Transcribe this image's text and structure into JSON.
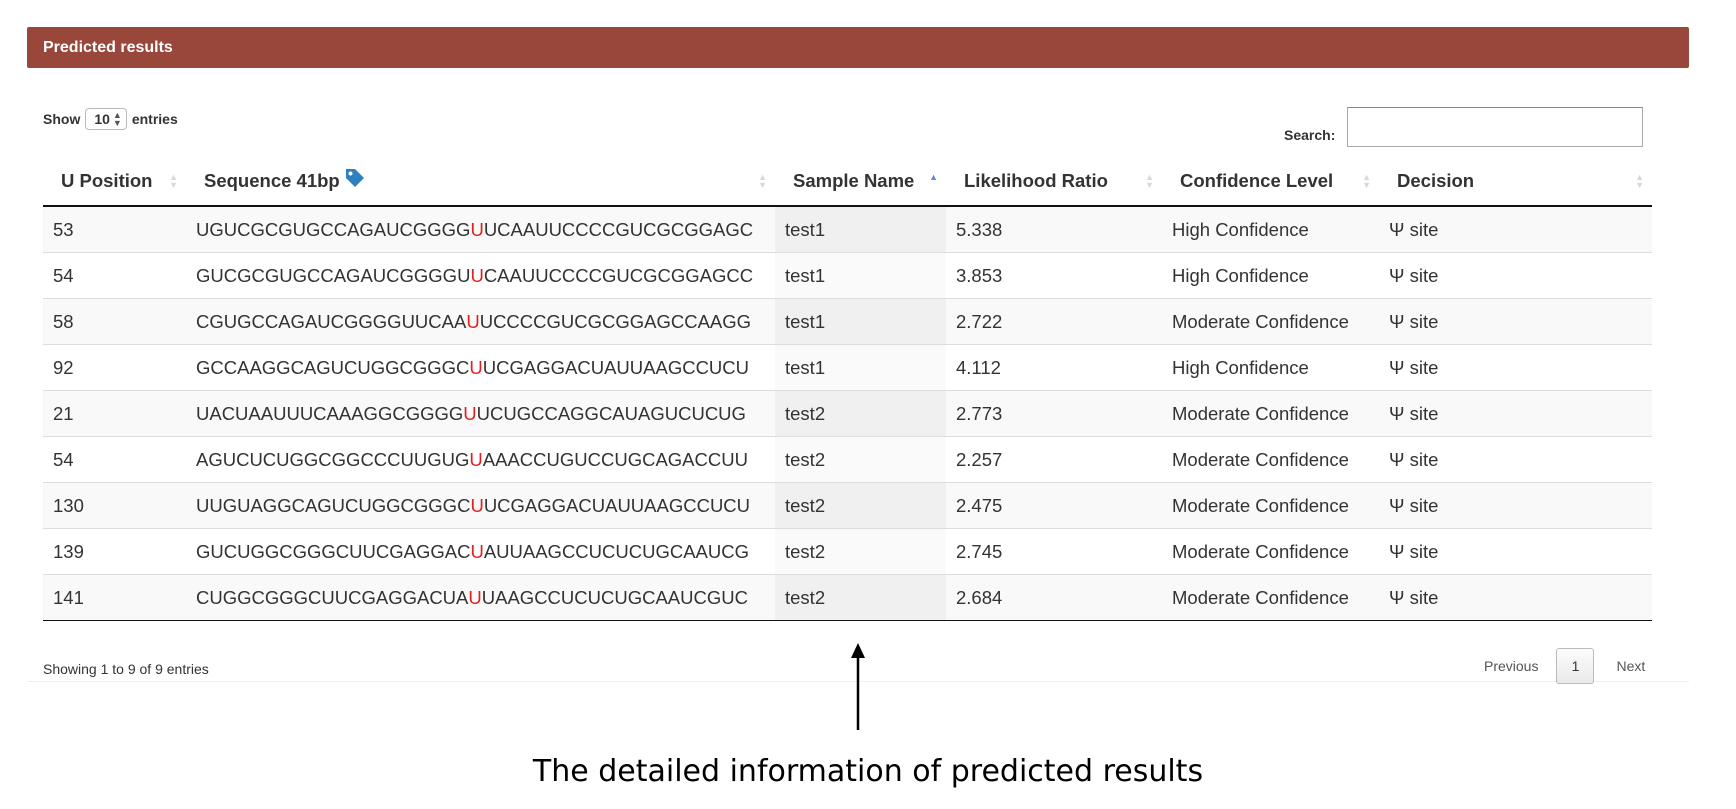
{
  "panel": {
    "title": "Predicted results"
  },
  "length_menu": {
    "show": "Show",
    "value": "10",
    "entries": "entries"
  },
  "search": {
    "label": "Search:",
    "value": "",
    "placeholder": ""
  },
  "table": {
    "columns": [
      "U Position",
      "Sequence 41bp",
      "Sample Name",
      "Likelihood Ratio",
      "Confidence Level",
      "Decision"
    ],
    "sorted_column": "Sample Name",
    "sort_direction": "ascending",
    "rows": [
      {
        "pos": "53",
        "seq_pre": "UGUCGCGUGCCAGAUCGGGG",
        "seq_mid": "U",
        "seq_post": "UCAAUUCCCCGUCGCGGAGC",
        "sample": "test1",
        "ratio": "5.338",
        "confidence": "High Confidence",
        "decision": "Ψ site"
      },
      {
        "pos": "54",
        "seq_pre": "GUCGCGUGCCAGAUCGGGGU",
        "seq_mid": "U",
        "seq_post": "CAAUUCCCCGUCGCGGAGCC",
        "sample": "test1",
        "ratio": "3.853",
        "confidence": "High Confidence",
        "decision": "Ψ site"
      },
      {
        "pos": "58",
        "seq_pre": "CGUGCCAGAUCGGGGUUCAA",
        "seq_mid": "U",
        "seq_post": "UCCCCGUCGCGGAGCCAAGG",
        "sample": "test1",
        "ratio": "2.722",
        "confidence": "Moderate Confidence",
        "decision": "Ψ site"
      },
      {
        "pos": "92",
        "seq_pre": "GCCAAGGCAGUCUGGCGGGC",
        "seq_mid": "U",
        "seq_post": "UCGAGGACUAUUAAGCCUCU",
        "sample": "test1",
        "ratio": "4.112",
        "confidence": "High Confidence",
        "decision": "Ψ site"
      },
      {
        "pos": "21",
        "seq_pre": "UACUAAUUUCAAAGGCGGGG",
        "seq_mid": "U",
        "seq_post": "UCUGCCAGGCAUAGUCUCUG",
        "sample": "test2",
        "ratio": "2.773",
        "confidence": "Moderate Confidence",
        "decision": "Ψ site"
      },
      {
        "pos": "54",
        "seq_pre": "AGUCUCUGGCGGCCCUUGUG",
        "seq_mid": "U",
        "seq_post": "AAACCUGUCCUGCAGACCUU",
        "sample": "test2",
        "ratio": "2.257",
        "confidence": "Moderate Confidence",
        "decision": "Ψ site"
      },
      {
        "pos": "130",
        "seq_pre": "UUGUAGGCAGUCUGGCGGGC",
        "seq_mid": "U",
        "seq_post": "UCGAGGACUAUUAAGCCUCU",
        "sample": "test2",
        "ratio": "2.475",
        "confidence": "Moderate Confidence",
        "decision": "Ψ site"
      },
      {
        "pos": "139",
        "seq_pre": "GUCUGGCGGGCUUCGAGGAC",
        "seq_mid": "U",
        "seq_post": "AUUAAGCCUCUCUGCAAUCG",
        "sample": "test2",
        "ratio": "2.745",
        "confidence": "Moderate Confidence",
        "decision": "Ψ site"
      },
      {
        "pos": "141",
        "seq_pre": "CUGGCGGGCUUCGAGGACUA",
        "seq_mid": "U",
        "seq_post": "UAAGCCUCUCUGCAAUCGUC",
        "sample": "test2",
        "ratio": "2.684",
        "confidence": "Moderate Confidence",
        "decision": "Ψ site"
      }
    ]
  },
  "info": "Showing 1 to 9 of 9 entries",
  "pagination": {
    "previous": "Previous",
    "current": "1",
    "next": "Next"
  },
  "caption": "The detailed information of predicted results",
  "colors": {
    "header_bg": "#99463b",
    "highlight": "#e31e1e",
    "sort_active": "#6b86c9",
    "tag_icon": "#2f7fc1"
  },
  "icons": {
    "column_tag": "tag-icon",
    "annotation": "arrow-up-icon"
  }
}
